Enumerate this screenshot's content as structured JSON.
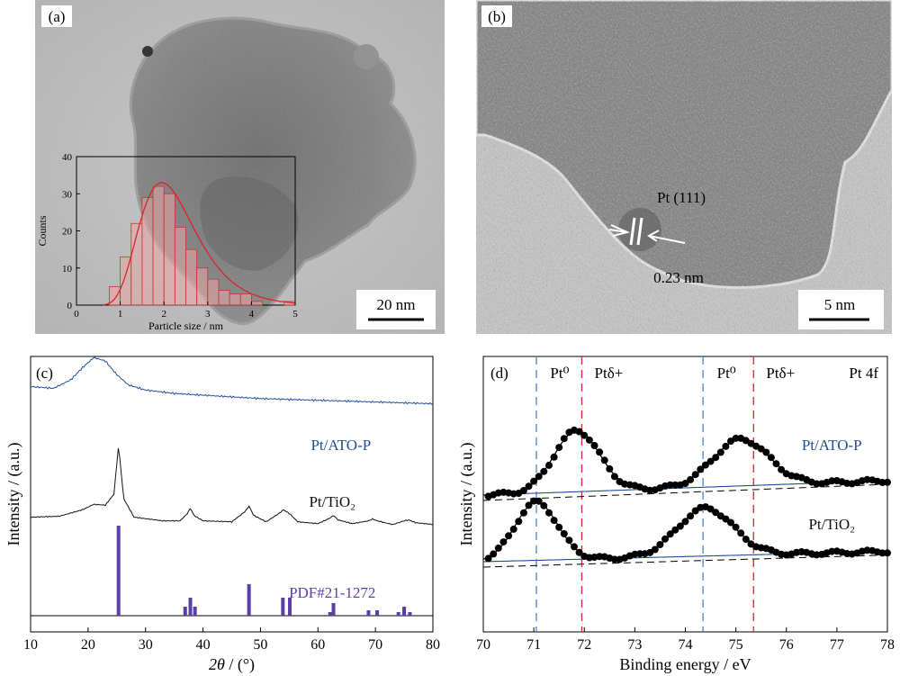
{
  "panel_a": {
    "label": "(a)",
    "scale_bar": "20 nm",
    "inset": {
      "type": "histogram",
      "xlabel": "Particle size / nm",
      "ylabel": "Counts",
      "xticks": [
        "0",
        "1",
        "2",
        "3",
        "4",
        "5"
      ],
      "yticks": [
        "0",
        "10",
        "20",
        "30",
        "40"
      ],
      "xlim": [
        0,
        5
      ],
      "ylim": [
        0,
        40
      ],
      "bin_width": 0.25,
      "bins_start": [
        0.75,
        1.0,
        1.25,
        1.5,
        1.75,
        2.0,
        2.25,
        2.5,
        2.75,
        3.0,
        3.25,
        3.5,
        3.75,
        4.0,
        4.25,
        4.5,
        4.75
      ],
      "counts": [
        5,
        13,
        22,
        29,
        32,
        30,
        21,
        15,
        10,
        7,
        4,
        3,
        3,
        1,
        0,
        0,
        1
      ],
      "fit_color": "#d62728",
      "bar_color": "#c0392b"
    }
  },
  "panel_b": {
    "label": "(b)",
    "scale_bar": "5 nm",
    "lattice_label": "Pt (111)",
    "spacing_label": "0.23 nm"
  },
  "chart_data": [
    {
      "panel": "(c)",
      "type": "line",
      "xlabel_italic": "2θ",
      "xlabel_unit": " / (°)",
      "ylabel": "Intensity / (a.u.)",
      "xlim": [
        10,
        80
      ],
      "xticks": [
        10,
        20,
        30,
        40,
        50,
        60,
        70,
        80
      ],
      "series": [
        {
          "name": "Pt/ATO-P",
          "color": "#1f4e9a",
          "x": [
            10,
            14,
            17,
            19,
            21,
            23,
            25,
            27,
            30,
            35,
            40,
            50,
            60,
            70,
            80
          ],
          "y": [
            0.95,
            0.94,
            0.99,
            1.06,
            1.12,
            1.1,
            1.02,
            0.96,
            0.93,
            0.91,
            0.9,
            0.88,
            0.87,
            0.86,
            0.85
          ]
        },
        {
          "name": "Pt/TiO₂",
          "color": "#111111",
          "x": [
            10,
            15,
            19,
            21,
            23,
            24.5,
            25.3,
            26.2,
            28,
            33,
            36,
            37.3,
            37.8,
            38.4,
            40,
            45,
            47.3,
            48.0,
            48.8,
            51,
            53.2,
            54.0,
            55.0,
            56.5,
            60,
            62.1,
            62.7,
            63.5,
            66,
            68.8,
            69.5,
            70.3,
            73,
            75.0,
            75.8,
            77,
            80
          ],
          "y": [
            0.2,
            0.21,
            0.28,
            0.34,
            0.33,
            0.45,
            0.98,
            0.4,
            0.2,
            0.16,
            0.16,
            0.24,
            0.3,
            0.22,
            0.16,
            0.15,
            0.26,
            0.32,
            0.22,
            0.15,
            0.24,
            0.28,
            0.24,
            0.15,
            0.13,
            0.19,
            0.22,
            0.17,
            0.13,
            0.16,
            0.18,
            0.16,
            0.12,
            0.16,
            0.17,
            0.14,
            0.12
          ]
        }
      ],
      "reference": {
        "name": "PDF#21-1272",
        "color": "#5b3fa6",
        "positions": [
          25.3,
          36.9,
          37.8,
          38.6,
          48.0,
          53.9,
          55.1,
          62.1,
          62.7,
          68.8,
          70.3,
          74.0,
          75.0,
          76.0
        ],
        "intensities": [
          100,
          10,
          20,
          10,
          35,
          20,
          20,
          4,
          14,
          6,
          6,
          4,
          10,
          4
        ]
      }
    },
    {
      "panel": "(d)",
      "type": "scatter",
      "title": "Pt 4f",
      "xlabel": "Binding energy / eV",
      "ylabel": "Intensity / (a.u.)",
      "xlim": [
        70,
        78
      ],
      "xticks": [
        70,
        71,
        72,
        73,
        74,
        75,
        76,
        77,
        78
      ],
      "reference_lines": [
        {
          "x": 71.05,
          "label": "Pt⁰",
          "color": "#4a86c8"
        },
        {
          "x": 71.95,
          "label": "Ptδ+",
          "color": "#d62728"
        },
        {
          "x": 74.35,
          "label": "Pt⁰",
          "color": "#4a86c8"
        },
        {
          "x": 75.35,
          "label": "Ptδ+",
          "color": "#d62728"
        }
      ],
      "series": [
        {
          "name": "Pt/ATO-P",
          "color": "#1f4e9a",
          "peaks": [
            {
              "center": 71.85,
              "height": 0.34,
              "width": 0.45
            },
            {
              "center": 75.1,
              "height": 0.26,
              "width": 0.55
            }
          ],
          "baseline": [
            0.1,
            0.18
          ]
        },
        {
          "name": "Pt/TiO₂",
          "color": "#111111",
          "peaks": [
            {
              "center": 71.05,
              "height": 0.34,
              "width": 0.42
            },
            {
              "center": 74.4,
              "height": 0.28,
              "width": 0.55
            }
          ],
          "baseline": [
            0.06,
            0.12
          ]
        }
      ]
    }
  ]
}
